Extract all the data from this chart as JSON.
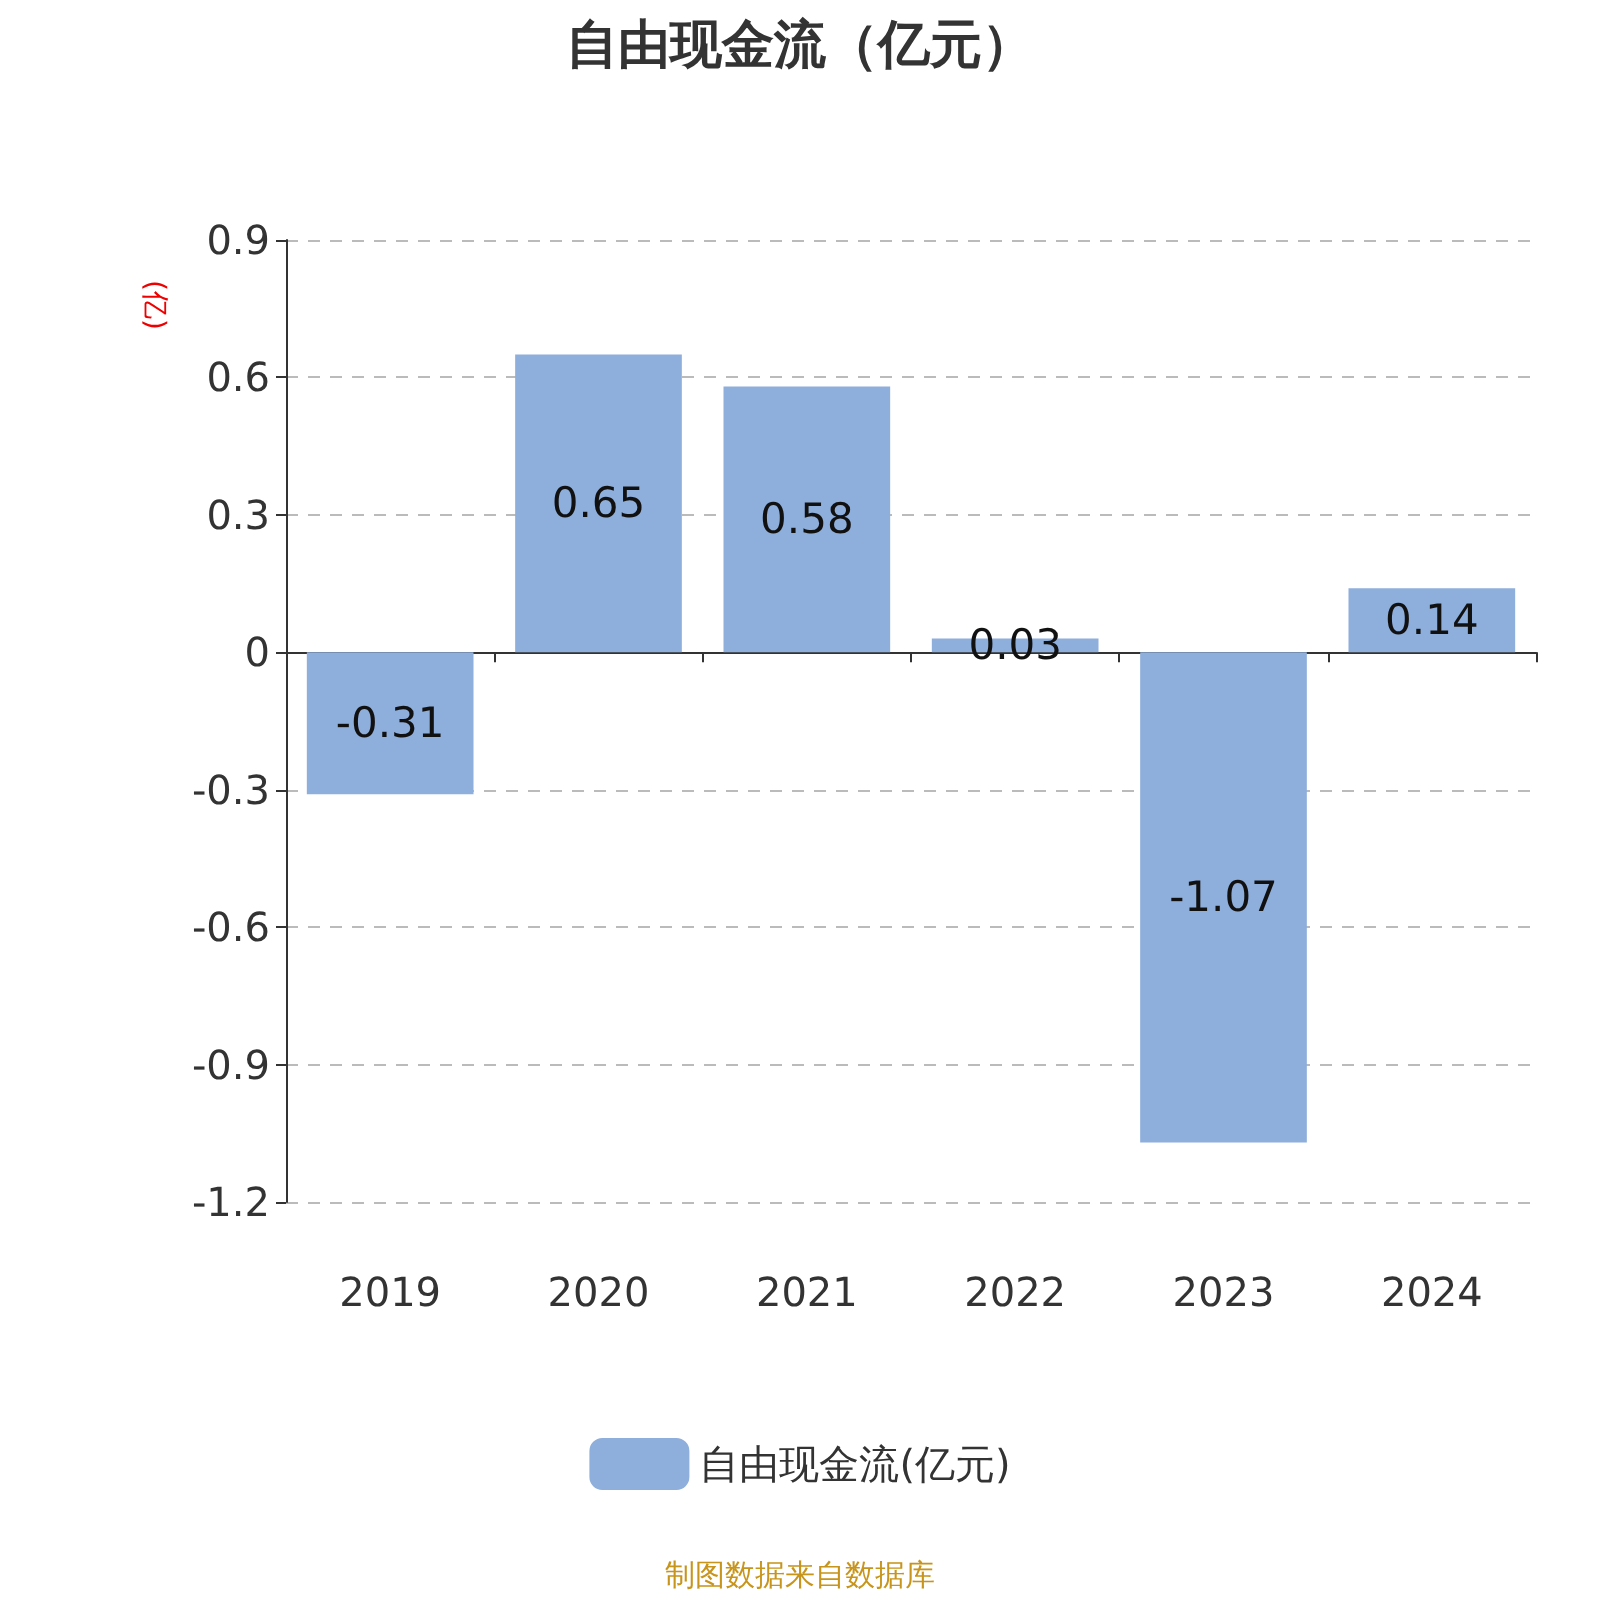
{
  "chart_data": {
    "type": "bar",
    "title": "自由现金流（亿元）",
    "ylabel": "(亿)",
    "categories": [
      "2019",
      "2020",
      "2021",
      "2022",
      "2023",
      "2024"
    ],
    "series": [
      {
        "name": "自由现金流(亿元)",
        "color": "#8eaedb",
        "values": [
          -0.31,
          0.65,
          0.58,
          0.03,
          -1.07,
          0.14
        ]
      }
    ],
    "ylim": [
      -1.2,
      0.9
    ],
    "yticks": [
      -1.2,
      -0.9,
      -0.6,
      -0.3,
      0,
      0.3,
      0.6,
      0.9
    ],
    "grid": "y",
    "legend": "bottom",
    "data_labels": true,
    "annotations": [
      "制图数据来自数据库"
    ]
  }
}
